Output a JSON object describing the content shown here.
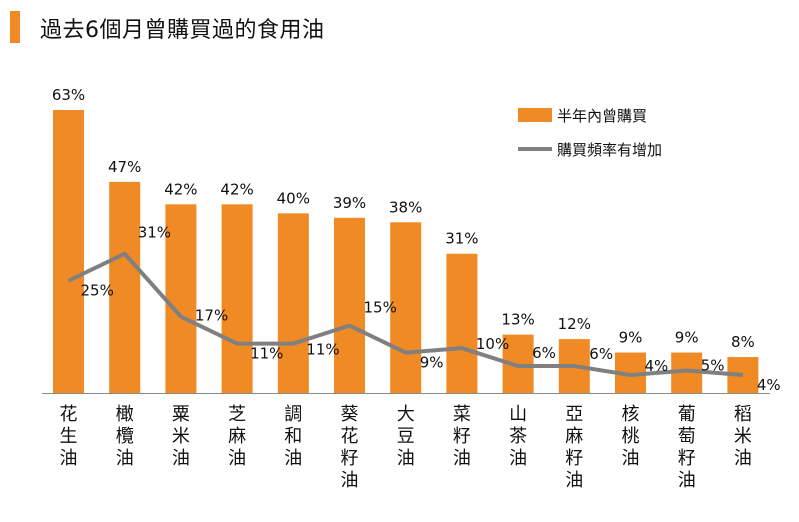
{
  "chart_data": {
    "type": "bar",
    "title": "過去6個月曾購買過的食用油",
    "categories": [
      "花生油",
      "橄欖油",
      "粟米油",
      "芝麻油",
      "調和油",
      "葵花籽油",
      "大豆油",
      "菜籽油",
      "山茶油",
      "亞麻籽油",
      "核桃油",
      "葡萄籽油",
      "稻米油"
    ],
    "series": [
      {
        "name": "半年內曾購買",
        "type": "bar",
        "values": [
          63,
          47,
          42,
          42,
          40,
          39,
          38,
          31,
          13,
          12,
          9,
          9,
          8
        ],
        "labels": [
          "63%",
          "47%",
          "42%",
          "42%",
          "40%",
          "39%",
          "38%",
          "31%",
          "13%",
          "12%",
          "9%",
          "9%",
          "8%"
        ],
        "color": "#f08a24"
      },
      {
        "name": "購買頻率有增加",
        "type": "line",
        "values": [
          25,
          31,
          17,
          11,
          11,
          15,
          9,
          10,
          6,
          6,
          4,
          5,
          4
        ],
        "labels": [
          "25%",
          "31%",
          "17%",
          "11%",
          "11%",
          "15%",
          "9%",
          "10%",
          "6%",
          "6%",
          "4%",
          "5%",
          "4%"
        ],
        "color": "#808080"
      }
    ],
    "ylim": [
      0,
      70
    ],
    "grid": false,
    "legend_position": "top-right"
  }
}
